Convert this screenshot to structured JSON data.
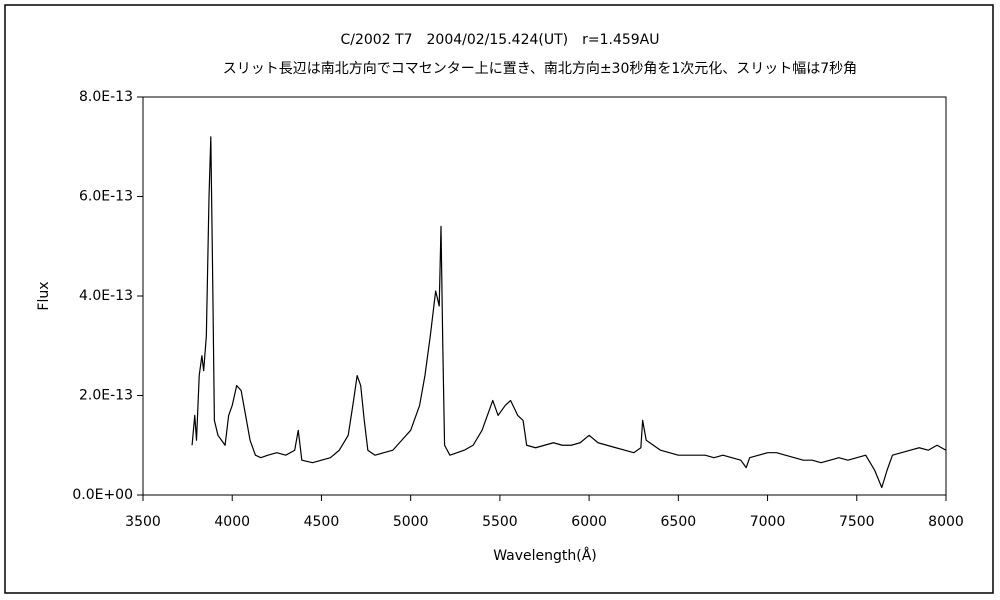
{
  "chart_data": {
    "type": "line",
    "title": "C/2002 T7　2004/02/15.424(UT)　r=1.459AU",
    "subtitle": "スリット長辺は南北方向でコマセンター上に置き、南北方向±30秒角を1次元化、スリット幅は7秒角",
    "x_label": "Wavelength(Å)",
    "y_label": "Flux",
    "xlim": [
      3500,
      8000
    ],
    "xticks": [
      3500,
      4000,
      4500,
      5000,
      5500,
      6000,
      6500,
      7000,
      7500,
      8000
    ],
    "ylim": [
      0,
      8e-13
    ],
    "yticks": [
      {
        "value": 0,
        "label": "0.0E+00"
      },
      {
        "value": 2e-13,
        "label": "2.0E-13"
      },
      {
        "value": 4e-13,
        "label": "4.0E-13"
      },
      {
        "value": 6e-13,
        "label": "6.0E-13"
      },
      {
        "value": 8e-13,
        "label": "8.0E-13"
      }
    ],
    "grid": false,
    "x": [
      3775,
      3790,
      3800,
      3815,
      3830,
      3840,
      3855,
      3870,
      3880,
      3890,
      3900,
      3920,
      3940,
      3960,
      3980,
      4000,
      4025,
      4050,
      4075,
      4100,
      4130,
      4160,
      4200,
      4250,
      4300,
      4350,
      4370,
      4390,
      4450,
      4500,
      4550,
      4600,
      4650,
      4680,
      4700,
      4720,
      4740,
      4760,
      4800,
      4850,
      4900,
      4950,
      5000,
      5050,
      5080,
      5110,
      5140,
      5160,
      5170,
      5180,
      5190,
      5220,
      5260,
      5300,
      5350,
      5400,
      5440,
      5460,
      5490,
      5530,
      5560,
      5600,
      5630,
      5650,
      5700,
      5750,
      5800,
      5850,
      5900,
      5950,
      6000,
      6050,
      6100,
      6150,
      6200,
      6250,
      6290,
      6300,
      6320,
      6360,
      6400,
      6450,
      6500,
      6550,
      6600,
      6650,
      6700,
      6750,
      6800,
      6850,
      6880,
      6900,
      6950,
      7000,
      7050,
      7100,
      7150,
      7200,
      7250,
      7300,
      7350,
      7400,
      7450,
      7500,
      7550,
      7600,
      7640,
      7670,
      7700,
      7750,
      7800,
      7850,
      7900,
      7950,
      8000
    ],
    "series": [
      {
        "color": "#000000",
        "values": [
          1e-13,
          1.6e-13,
          1.1e-13,
          2.4e-13,
          2.8e-13,
          2.5e-13,
          3.2e-13,
          6e-13,
          7.2e-13,
          4.5e-13,
          1.5e-13,
          1.2e-13,
          1.1e-13,
          1e-13,
          1.6e-13,
          1.8e-13,
          2.2e-13,
          2.1e-13,
          1.6e-13,
          1.1e-13,
          8e-14,
          7.5e-14,
          8e-14,
          8.5e-14,
          8e-14,
          9e-14,
          1.3e-13,
          7e-14,
          6.5e-14,
          7e-14,
          7.5e-14,
          9e-14,
          1.2e-13,
          1.9e-13,
          2.4e-13,
          2.2e-13,
          1.5e-13,
          9e-14,
          8e-14,
          8.5e-14,
          9e-14,
          1.1e-13,
          1.3e-13,
          1.8e-13,
          2.4e-13,
          3.2e-13,
          4.1e-13,
          3.8e-13,
          5.4e-13,
          3e-13,
          1e-13,
          8e-14,
          8.5e-14,
          9e-14,
          1e-13,
          1.3e-13,
          1.7e-13,
          1.9e-13,
          1.6e-13,
          1.8e-13,
          1.9e-13,
          1.6e-13,
          1.5e-13,
          1e-13,
          9.5e-14,
          1e-13,
          1.05e-13,
          1e-13,
          1e-13,
          1.05e-13,
          1.2e-13,
          1.05e-13,
          1e-13,
          9.5e-14,
          9e-14,
          8.5e-14,
          9.5e-14,
          1.5e-13,
          1.1e-13,
          1e-13,
          9e-14,
          8.5e-14,
          8e-14,
          8e-14,
          8e-14,
          8e-14,
          7.5e-14,
          8e-14,
          7.5e-14,
          7e-14,
          5.5e-14,
          7.5e-14,
          8e-14,
          8.5e-14,
          8.5e-14,
          8e-14,
          7.5e-14,
          7e-14,
          7e-14,
          6.5e-14,
          7e-14,
          7.5e-14,
          7e-14,
          7.5e-14,
          8e-14,
          5e-14,
          1.5e-14,
          5e-14,
          8e-14,
          8.5e-14,
          9e-14,
          9.5e-14,
          9e-14,
          1e-13,
          9e-14
        ]
      }
    ]
  }
}
